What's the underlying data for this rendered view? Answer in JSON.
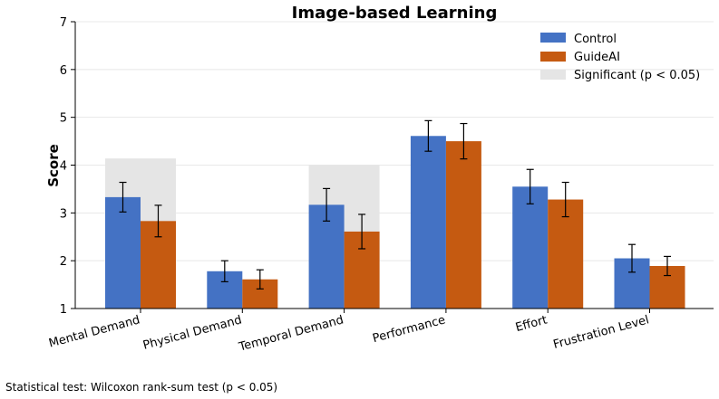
{
  "chart_data": {
    "type": "bar",
    "title": "Image-based Learning",
    "xlabel": "",
    "ylabel": "Score",
    "ylim": [
      1,
      7
    ],
    "yticks": [
      1,
      2,
      3,
      4,
      5,
      6,
      7
    ],
    "grid": "horizontal",
    "legend_position": "top-right",
    "categories": [
      "Mental Demand",
      "Physical Demand",
      "Temporal Demand",
      "Performance",
      "Effort",
      "Frustration Level"
    ],
    "series": [
      {
        "name": "Control",
        "color": "#4472c4",
        "values": [
          3.33,
          1.78,
          3.17,
          4.61,
          3.55,
          2.05
        ],
        "error": [
          0.31,
          0.22,
          0.34,
          0.32,
          0.36,
          0.29
        ]
      },
      {
        "name": "GuideAI",
        "color": "#c55a11",
        "values": [
          2.83,
          1.61,
          2.61,
          4.5,
          3.28,
          1.89
        ],
        "error": [
          0.33,
          0.2,
          0.36,
          0.37,
          0.36,
          0.2
        ]
      }
    ],
    "significance": {
      "label": "Significant (p < 0.05)",
      "color": "#e5e5e5",
      "categories": [
        "Mental Demand",
        "Temporal Demand"
      ],
      "heights": [
        4.14,
        4.0
      ]
    }
  },
  "footnote": "Statistical test: Wilcoxon rank-sum test (p < 0.05)"
}
